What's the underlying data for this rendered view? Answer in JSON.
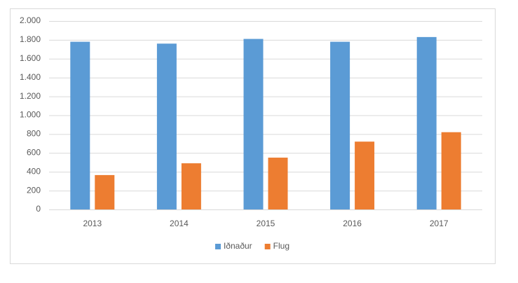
{
  "chart_data": {
    "type": "bar",
    "categories": [
      "2013",
      "2014",
      "2015",
      "2016",
      "2017"
    ],
    "series": [
      {
        "name": "Iðnaður",
        "color": "#5b9bd5",
        "values": [
          1780,
          1760,
          1810,
          1780,
          1830
        ]
      },
      {
        "name": "Flug",
        "color": "#ed7d31",
        "values": [
          365,
          490,
          550,
          720,
          820
        ]
      }
    ],
    "ylim": [
      0,
      2000
    ],
    "yticks": [
      0,
      200,
      400,
      600,
      800,
      {
        "value": 1000,
        "label": "1.000"
      },
      {
        "value": 1200,
        "label": "1.200"
      },
      {
        "value": 1400,
        "label": "1.400"
      },
      {
        "value": 1600,
        "label": "1.600"
      },
      {
        "value": 1800,
        "label": "1.800"
      },
      {
        "value": 2000,
        "label": "2.000"
      }
    ],
    "grid": true,
    "legend": "bottom"
  }
}
